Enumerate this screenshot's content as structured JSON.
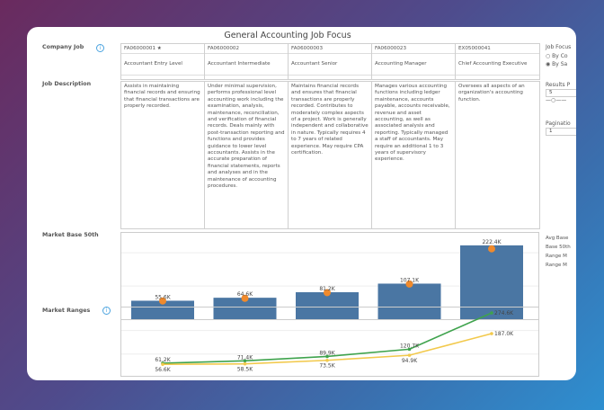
{
  "title": "General Accounting Job Focus",
  "labels": {
    "company_job": "Company Job",
    "job_description": "Job Description",
    "market_base": "Market Base 50th",
    "market_ranges": "Market Ranges"
  },
  "jobs": [
    {
      "code": "FA06000001 ★",
      "name": "Accountant Entry Level",
      "description": "Assists in maintaining financial records and ensuring that financial transactions are properly recorded."
    },
    {
      "code": "FA06000002",
      "name": "Accountant Intermediate",
      "description": "Under minimal supervision, performs professional level accounting work including the examination, analysis, maintenance, reconciliation, and verification of financial records. Deals mainly with post-transaction reporting and functions and provides guidance to lower level accountants. Assists in the accurate preparation of financial statements, reports and analyses and in the maintenance of accounting procedures."
    },
    {
      "code": "FA06000003",
      "name": "Accountant Senior",
      "description": "Maintains financial records and ensures that financial transactions are properly recorded. Contributes to moderately complex aspects of a project. Work is generally independent and collaborative in nature. Typically requires 4 to 7 years of related experience. May require CPA certification."
    },
    {
      "code": "FA06000023",
      "name": "Accounting Manager",
      "description": "Manages various accounting functions including ledger maintenance, accounts payable, accounts receivable, revenue and asset accounting, as well as associated analysis and reporting. Typically managed a staff of accountants. May require an additional 1 to 3 years of supervisory experience."
    },
    {
      "code": "EX05000041",
      "name": "Chief Accounting Executive",
      "description": "Oversees all aspects of an organization's accounting function."
    }
  ],
  "side": {
    "job_focus": "Job Focus",
    "opt1": "By Co",
    "opt2": "By Sa",
    "selected": "By Sa",
    "results_label": "Results P",
    "results_value": "5",
    "slider_fraction": 0.3,
    "pagination_label": "Paginatio",
    "pagination_value": "1",
    "legend": [
      "Avg Base",
      "Base 50th",
      "Range M",
      "Range M"
    ]
  },
  "colors": {
    "bar": "#4a76a3",
    "dot": "#f08a2c",
    "green": "#3fa34d",
    "yellow": "#f2c94c"
  },
  "chart_data": [
    {
      "type": "bar",
      "values": [
        55.6,
        64.6,
        81.2,
        107.1,
        222.4
      ],
      "labels": [
        "55.6K",
        "64.6K",
        "81.2K",
        "107.1K",
        "222.4K"
      ],
      "dots": [
        55,
        63,
        80,
        106,
        212
      ],
      "ylim": [
        0,
        260
      ]
    },
    {
      "type": "line",
      "ylim": [
        0,
        290
      ],
      "series": [
        {
          "values": [
            61.2,
            71.4,
            89.9,
            120.7,
            274.6
          ],
          "labels": [
            "61.2K",
            "71.4K",
            "89.9K",
            "120.7K",
            "274.6K"
          ],
          "color": "#3fa34d"
        },
        {
          "values": [
            56.6,
            58.5,
            73.5,
            94.9,
            187.0
          ],
          "labels": [
            "56.6K",
            "58.5K",
            "73.5K",
            "94.9K",
            "187.0K"
          ],
          "color": "#f2c94c"
        }
      ]
    }
  ]
}
